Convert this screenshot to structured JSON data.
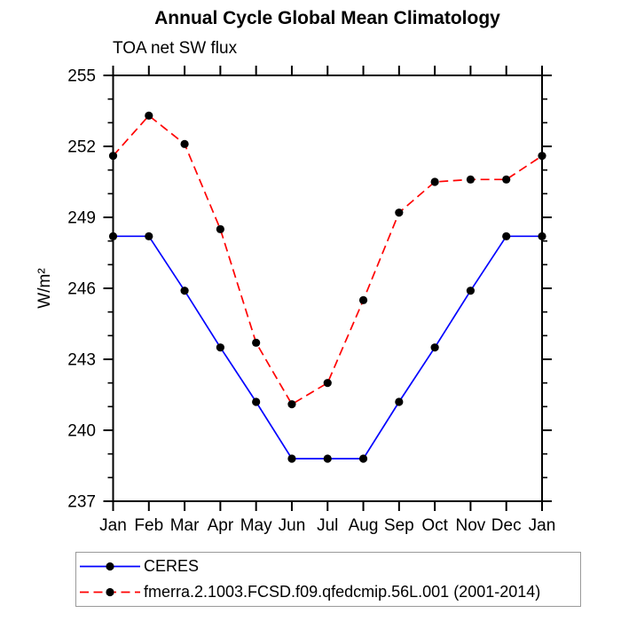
{
  "chart": {
    "title": "Annual Cycle Global Mean Climatology",
    "subtitle": "TOA net SW flux",
    "ylabel": "W/m²"
  },
  "chart_data": {
    "type": "line",
    "title": "Annual Cycle Global Mean Climatology",
    "subtitle": "TOA net SW flux",
    "xlabel": "",
    "ylabel": "W/m²",
    "categories": [
      "Jan",
      "Feb",
      "Mar",
      "Apr",
      "May",
      "Jun",
      "Jul",
      "Aug",
      "Sep",
      "Oct",
      "Nov",
      "Dec",
      "Jan"
    ],
    "series": [
      {
        "name": "CERES",
        "color": "#0000ff",
        "line_style": "solid",
        "marker": "filled-circle",
        "marker_color": "#000000",
        "values": [
          248.2,
          248.2,
          245.9,
          243.5,
          241.2,
          238.8,
          238.8,
          238.8,
          241.2,
          243.5,
          245.9,
          248.2,
          248.2
        ]
      },
      {
        "name": "fmerra.2.1003.FCSD.f09.qfedcmip.56L.001 (2001-2014)",
        "color": "#ff0000",
        "line_style": "dashed",
        "marker": "filled-circle",
        "marker_color": "#000000",
        "values": [
          251.6,
          253.3,
          252.1,
          248.5,
          243.7,
          241.1,
          242.0,
          245.5,
          249.2,
          250.5,
          250.6,
          250.6,
          251.6
        ]
      }
    ],
    "ylim": [
      237,
      255
    ],
    "yticks": [
      237,
      240,
      243,
      246,
      249,
      252,
      255
    ],
    "y_minor_tick_step": 1,
    "grid": false,
    "frame_color": "#000000",
    "legend_position": "bottom-left"
  }
}
